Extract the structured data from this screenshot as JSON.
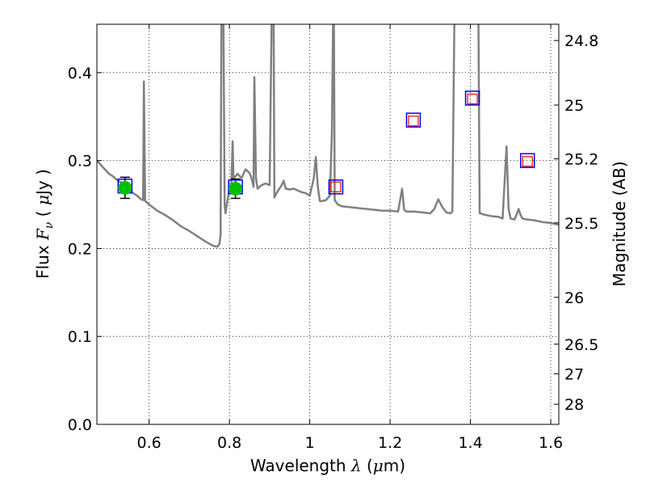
{
  "chart_data": {
    "type": "line",
    "xlabel": {
      "prefix": "Wavelength  ",
      "symbol": "λ",
      "unit_open": " (",
      "unit_mu": "μ",
      "unit_rest": "m)"
    },
    "ylabel": {
      "prefix": "Flux  ",
      "symbol": "F",
      "sub": "ν",
      "unit_open": "  ( ",
      "unit_mu": "μ",
      "unit_rest": "Jy )"
    },
    "y2label": "Magnitude (AB)",
    "xlim": [
      0.47,
      1.62
    ],
    "ylim": [
      0.0,
      0.455
    ],
    "grid": true,
    "x_ticks": [
      {
        "value": 0.6,
        "label": "0.6"
      },
      {
        "value": 0.8,
        "label": "0.8"
      },
      {
        "value": 1.0,
        "label": "1"
      },
      {
        "value": 1.2,
        "label": "1.2"
      },
      {
        "value": 1.4,
        "label": "1.4"
      },
      {
        "value": 1.6,
        "label": "1.6"
      }
    ],
    "y_ticks": [
      {
        "value": 0.0,
        "label": "0.0"
      },
      {
        "value": 0.1,
        "label": "0.1"
      },
      {
        "value": 0.2,
        "label": "0.2"
      },
      {
        "value": 0.3,
        "label": "0.3"
      },
      {
        "value": 0.4,
        "label": "0.4"
      }
    ],
    "y2_ticks": [
      {
        "label": "24.8",
        "flux": 0.4365
      },
      {
        "label": "25",
        "flux": 0.3631
      },
      {
        "label": "25.2",
        "flux": 0.302
      },
      {
        "label": "25.5",
        "flux": 0.2291
      },
      {
        "label": "26",
        "flux": 0.1445
      },
      {
        "label": "26.5",
        "flux": 0.0912
      },
      {
        "label": "27",
        "flux": 0.0575
      },
      {
        "label": "28",
        "flux": 0.0229
      }
    ],
    "series": [
      {
        "kind": "model_spectrum",
        "color": "#808080",
        "x": [
          0.47,
          0.48,
          0.49,
          0.5,
          0.51,
          0.52,
          0.53,
          0.54,
          0.55,
          0.56,
          0.57,
          0.58,
          0.585,
          0.587,
          0.59,
          0.6,
          0.62,
          0.64,
          0.66,
          0.68,
          0.7,
          0.72,
          0.74,
          0.76,
          0.77,
          0.775,
          0.778,
          0.78,
          0.781,
          0.785,
          0.788,
          0.79,
          0.8,
          0.805,
          0.808,
          0.81,
          0.815,
          0.82,
          0.83,
          0.84,
          0.85,
          0.855,
          0.86,
          0.862,
          0.866,
          0.87,
          0.88,
          0.89,
          0.9,
          0.905,
          0.908,
          0.91,
          0.912,
          0.916,
          0.92,
          0.93,
          0.935,
          0.94,
          0.95,
          0.96,
          0.97,
          0.98,
          0.99,
          1.0,
          1.01,
          1.015,
          1.02,
          1.025,
          1.03,
          1.04,
          1.05,
          1.055,
          1.058,
          1.06,
          1.062,
          1.07,
          1.08,
          1.1,
          1.12,
          1.14,
          1.16,
          1.18,
          1.2,
          1.22,
          1.23,
          1.235,
          1.24,
          1.26,
          1.28,
          1.3,
          1.31,
          1.32,
          1.33,
          1.34,
          1.35,
          1.355,
          1.36,
          1.37,
          1.38,
          1.4,
          1.41,
          1.42,
          1.423,
          1.426,
          1.43,
          1.45,
          1.47,
          1.48,
          1.49,
          1.495,
          1.5,
          1.51,
          1.52,
          1.525,
          1.53,
          1.54,
          1.56,
          1.58,
          1.6,
          1.62
        ],
        "y": [
          0.3,
          0.295,
          0.29,
          0.285,
          0.282,
          0.278,
          0.275,
          0.272,
          0.268,
          0.263,
          0.26,
          0.256,
          0.255,
          0.39,
          0.254,
          0.25,
          0.243,
          0.238,
          0.232,
          0.225,
          0.22,
          0.214,
          0.208,
          0.203,
          0.202,
          0.205,
          0.215,
          0.46,
          0.46,
          0.46,
          0.25,
          0.24,
          0.268,
          0.275,
          0.322,
          0.28,
          0.282,
          0.285,
          0.28,
          0.29,
          0.286,
          0.28,
          0.27,
          0.395,
          0.28,
          0.268,
          0.272,
          0.274,
          0.272,
          0.46,
          0.46,
          0.46,
          0.258,
          0.262,
          0.265,
          0.272,
          0.277,
          0.268,
          0.267,
          0.268,
          0.266,
          0.264,
          0.263,
          0.26,
          0.28,
          0.304,
          0.27,
          0.254,
          0.254,
          0.255,
          0.26,
          0.33,
          0.46,
          0.46,
          0.255,
          0.25,
          0.248,
          0.247,
          0.246,
          0.245,
          0.244,
          0.243,
          0.243,
          0.242,
          0.268,
          0.244,
          0.242,
          0.242,
          0.241,
          0.24,
          0.245,
          0.256,
          0.247,
          0.241,
          0.24,
          0.242,
          0.46,
          0.46,
          0.46,
          0.46,
          0.46,
          0.46,
          0.24,
          0.24,
          0.239,
          0.237,
          0.236,
          0.234,
          0.316,
          0.245,
          0.234,
          0.233,
          0.245,
          0.238,
          0.234,
          0.233,
          0.232,
          0.23,
          0.229,
          0.227
        ]
      },
      {
        "kind": "model_photometry",
        "marker": "open_square",
        "color": "#0000ff",
        "x": [
          0.54,
          0.815,
          1.065,
          1.258,
          1.405,
          1.542
        ],
        "y": [
          0.271,
          0.27,
          0.27,
          0.346,
          0.371,
          0.3
        ]
      },
      {
        "kind": "predicted_photometry",
        "marker": "open_square",
        "color": "#ff0000",
        "x": [
          1.065,
          1.258,
          1.405,
          1.542
        ],
        "y": [
          0.27,
          0.345,
          0.37,
          0.299
        ]
      },
      {
        "kind": "observed_photometry",
        "marker": "filled_circle",
        "color": "#00bf00",
        "x": [
          0.54,
          0.815
        ],
        "y": [
          0.269,
          0.268
        ],
        "yerr": [
          0.012,
          0.011
        ]
      }
    ]
  }
}
